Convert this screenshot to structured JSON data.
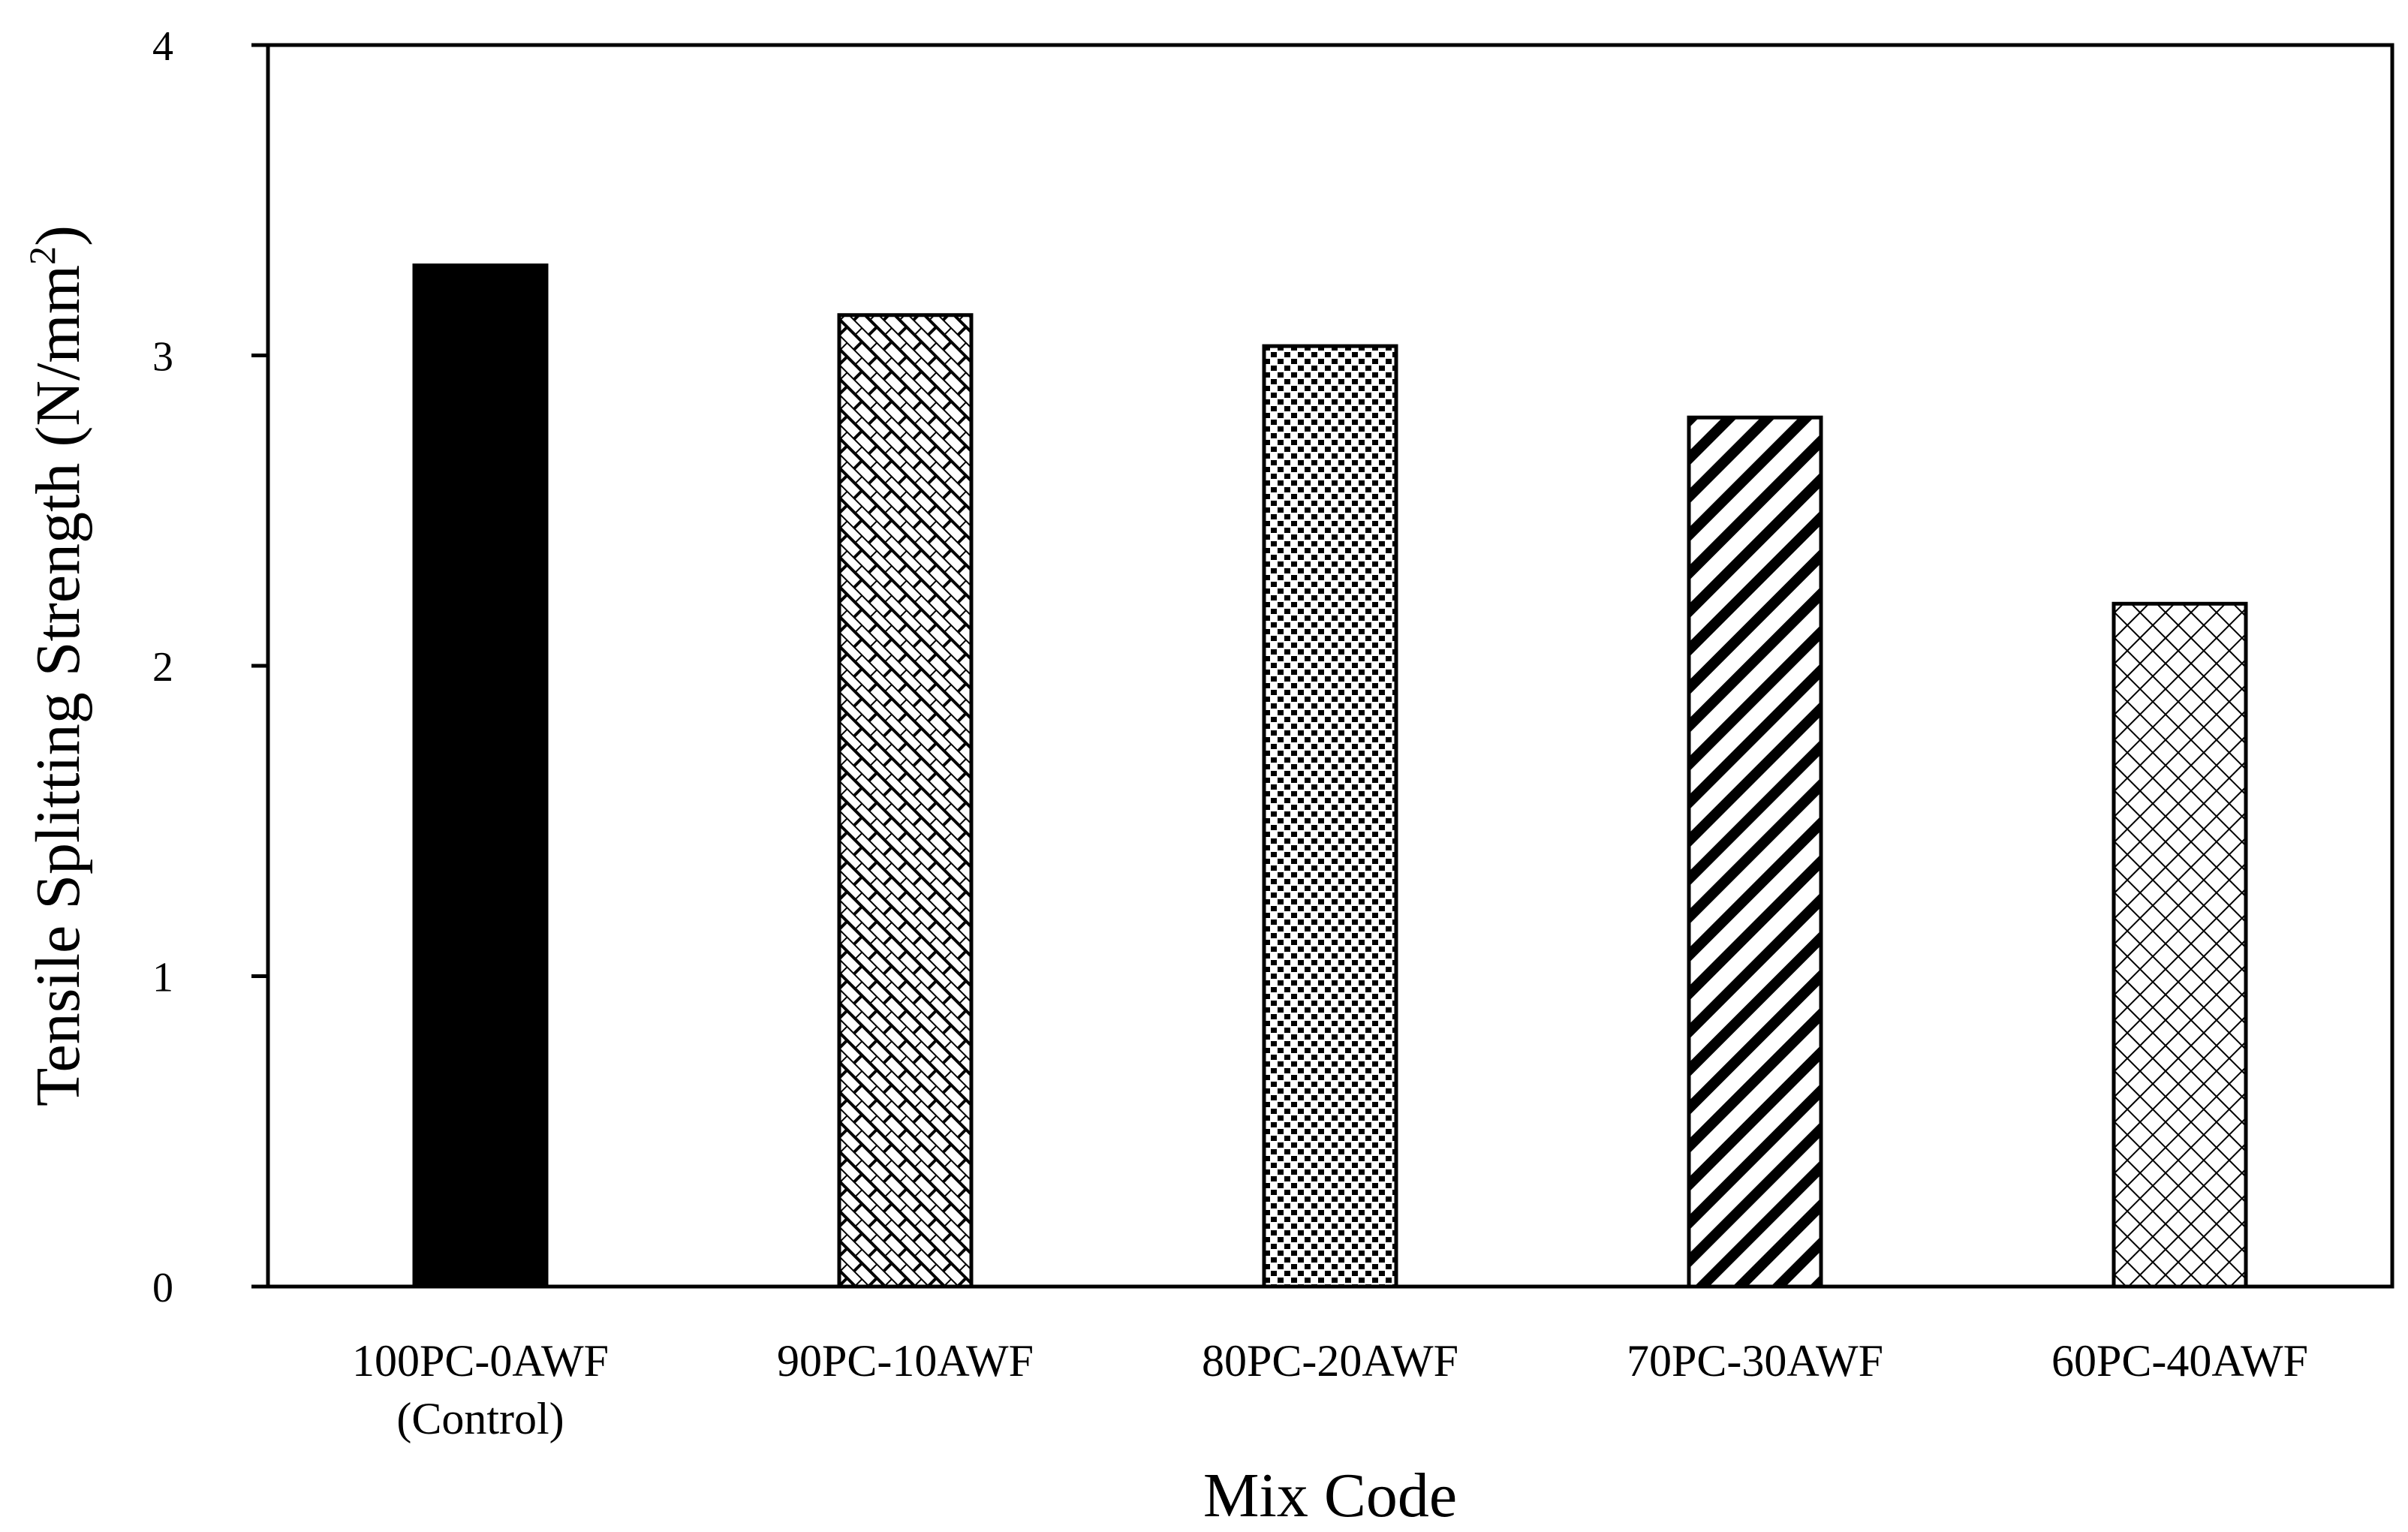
{
  "chart_data": {
    "type": "bar",
    "title": "",
    "xlabel": "Mix Code",
    "ylabel": "Tensile Splitting Strength (N/mm",
    "ylabel_superscript": "2",
    "ylabel_close": ")",
    "ylim": [
      0,
      4
    ],
    "yticks": [
      "0",
      "1",
      "2",
      "3",
      "4"
    ],
    "grid": false,
    "legend": "none",
    "categories": [
      {
        "line1": "100PC-0AWF",
        "line2": "(Control)"
      },
      {
        "line1": "90PC-10AWF",
        "line2": ""
      },
      {
        "line1": "80PC-20AWF",
        "line2": ""
      },
      {
        "line1": "70PC-30AWF",
        "line2": ""
      },
      {
        "line1": "60PC-40AWF",
        "line2": ""
      }
    ],
    "values": [
      3.29,
      3.13,
      3.03,
      2.8,
      2.2
    ],
    "fills": [
      "solid",
      "brick",
      "dots",
      "diagonal",
      "cross"
    ],
    "colors": {
      "bar_stroke": "#000000",
      "bar_fill": "#000000",
      "background": "#ffffff"
    }
  }
}
